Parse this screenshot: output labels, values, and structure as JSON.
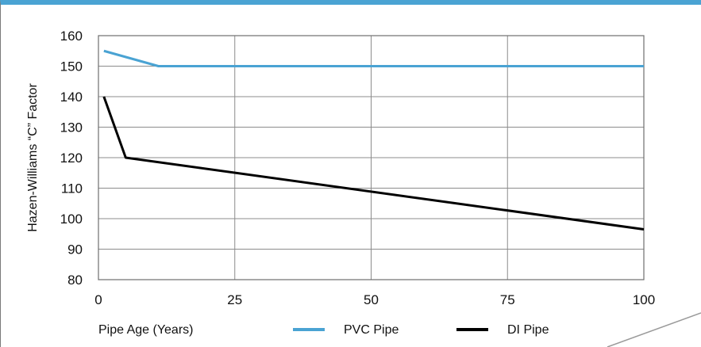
{
  "chart_data": {
    "type": "line",
    "xlabel": "Pipe Age (Years)",
    "ylabel": "Hazen-Williams “C” Factor",
    "xlim": [
      0,
      100
    ],
    "ylim": [
      80,
      160
    ],
    "x_ticks": [
      "0",
      "25",
      "50",
      "75",
      "100"
    ],
    "y_ticks": [
      "80",
      "90",
      "100",
      "110",
      "120",
      "130",
      "140",
      "150",
      "160"
    ],
    "grid": true,
    "legend_position": "bottom",
    "series": [
      {
        "name": "PVC Pipe",
        "color": "#4aa3d3",
        "x": [
          1,
          11,
          100
        ],
        "y": [
          155,
          150,
          150
        ]
      },
      {
        "name": "DI Pipe",
        "color": "#000000",
        "x": [
          1,
          5,
          100
        ],
        "y": [
          140,
          120,
          96.5
        ]
      }
    ]
  }
}
